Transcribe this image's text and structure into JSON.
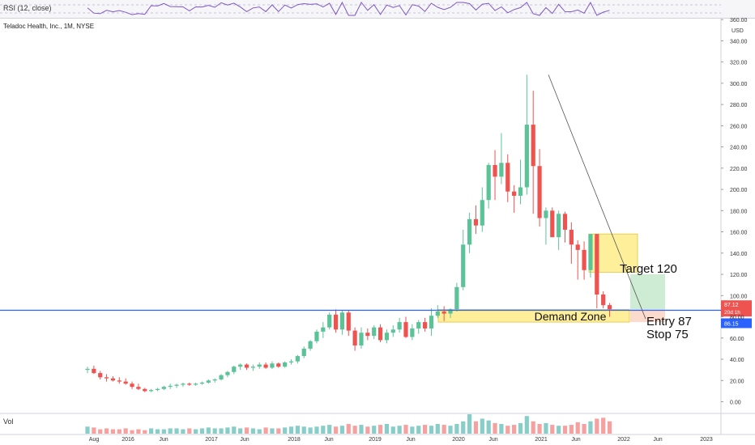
{
  "rsi": {
    "label": "RSI (12, close)"
  },
  "header": {
    "title": "Teladoc Health, Inc., 1M, NYSE",
    "currency": "USD"
  },
  "volume": {
    "label": "Vol"
  },
  "colors": {
    "up": "#26a69a",
    "upFill": "#5cc398",
    "down": "#ef5350",
    "price_line": "#2962ff",
    "demand_zone": "#fde97a",
    "target_zone": "#c9e9cf",
    "stop_zone": "#f9d7c8",
    "rsi_line": "#7e57c2"
  },
  "annotations": {
    "demand_zone": "Demand Zone",
    "target": "Target 120",
    "entry": "Entry  87",
    "stop": "Stop   75"
  },
  "price_badges": {
    "last": "87.12",
    "countdown": "20d 1h",
    "line": "86.15"
  },
  "chart_data": {
    "type": "candlestick",
    "symbol": "Teladoc Health, Inc., 1M, NYSE",
    "y_axis": {
      "min": 0,
      "max": 360,
      "ticks": [
        0,
        20,
        40,
        60,
        80,
        100,
        120,
        140,
        160,
        180,
        200,
        220,
        240,
        260,
        280,
        300,
        320,
        340,
        360
      ],
      "unit": "USD"
    },
    "x_ticks": [
      "Aug",
      "2016",
      "Jun",
      "2017",
      "Jun",
      "2018",
      "Jun",
      "2019",
      "Jun",
      "2020",
      "Jun",
      "2021",
      "Jun",
      "2022",
      "Jun",
      "2023"
    ],
    "start_month": "2015-07",
    "candles": [
      [
        30,
        33,
        27,
        31
      ],
      [
        31,
        34,
        26,
        27
      ],
      [
        27,
        29,
        21,
        23
      ],
      [
        23,
        26,
        19,
        22
      ],
      [
        22,
        24,
        19,
        20
      ],
      [
        20,
        23,
        17,
        19
      ],
      [
        19,
        22,
        16,
        17
      ],
      [
        17,
        19,
        12,
        14
      ],
      [
        14,
        17,
        11,
        12
      ],
      [
        12,
        13,
        9,
        10
      ],
      [
        10,
        12,
        9,
        11
      ],
      [
        11,
        13,
        10,
        12
      ],
      [
        12,
        15,
        11,
        14
      ],
      [
        14,
        17,
        12,
        15
      ],
      [
        15,
        17,
        13,
        16
      ],
      [
        16,
        18,
        14,
        17
      ],
      [
        17,
        18,
        15,
        16
      ],
      [
        16,
        18,
        15,
        17
      ],
      [
        17,
        19,
        16,
        18
      ],
      [
        18,
        21,
        17,
        20
      ],
      [
        20,
        22,
        18,
        21
      ],
      [
        21,
        26,
        20,
        25
      ],
      [
        25,
        29,
        23,
        28
      ],
      [
        28,
        34,
        26,
        33
      ],
      [
        33,
        36,
        30,
        35
      ],
      [
        35,
        36,
        30,
        32
      ],
      [
        32,
        35,
        29,
        33
      ],
      [
        33,
        37,
        31,
        35
      ],
      [
        35,
        37,
        31,
        32
      ],
      [
        32,
        38,
        31,
        36
      ],
      [
        36,
        37,
        32,
        33
      ],
      [
        33,
        38,
        32,
        37
      ],
      [
        37,
        40,
        35,
        38
      ],
      [
        38,
        44,
        36,
        43
      ],
      [
        43,
        52,
        41,
        50
      ],
      [
        50,
        58,
        48,
        57
      ],
      [
        57,
        68,
        55,
        66
      ],
      [
        66,
        75,
        60,
        70
      ],
      [
        70,
        84,
        68,
        82
      ],
      [
        82,
        87,
        65,
        68
      ],
      [
        68,
        86,
        63,
        84
      ],
      [
        84,
        86,
        62,
        67
      ],
      [
        67,
        70,
        48,
        53
      ],
      [
        53,
        70,
        50,
        65
      ],
      [
        65,
        69,
        58,
        62
      ],
      [
        62,
        72,
        59,
        70
      ],
      [
        70,
        73,
        56,
        58
      ],
      [
        58,
        68,
        55,
        65
      ],
      [
        65,
        72,
        61,
        68
      ],
      [
        68,
        79,
        65,
        75
      ],
      [
        75,
        80,
        60,
        61
      ],
      [
        61,
        73,
        58,
        69
      ],
      [
        69,
        77,
        64,
        75
      ],
      [
        75,
        79,
        66,
        69
      ],
      [
        69,
        88,
        62,
        81
      ],
      [
        81,
        91,
        79,
        85
      ],
      [
        85,
        90,
        76,
        83
      ],
      [
        83,
        88,
        79,
        87
      ],
      [
        87,
        112,
        85,
        108
      ],
      [
        108,
        162,
        105,
        148
      ],
      [
        148,
        178,
        140,
        172
      ],
      [
        172,
        185,
        158,
        166
      ],
      [
        166,
        202,
        160,
        190
      ],
      [
        190,
        225,
        182,
        223
      ],
      [
        223,
        237,
        190,
        212
      ],
      [
        212,
        253,
        205,
        225
      ],
      [
        225,
        233,
        188,
        198
      ],
      [
        198,
        204,
        178,
        194
      ],
      [
        194,
        228,
        186,
        202
      ],
      [
        202,
        308,
        195,
        261
      ],
      [
        261,
        293,
        177,
        222
      ],
      [
        222,
        238,
        165,
        173
      ],
      [
        173,
        183,
        148,
        180
      ],
      [
        180,
        183,
        155,
        155
      ],
      [
        155,
        180,
        143,
        177
      ],
      [
        177,
        179,
        150,
        162
      ],
      [
        162,
        169,
        130,
        148
      ],
      [
        148,
        152,
        115,
        143
      ],
      [
        143,
        151,
        115,
        124
      ],
      [
        124,
        158,
        117,
        158
      ],
      [
        158,
        158,
        88,
        101
      ],
      [
        101,
        104,
        88,
        91
      ],
      [
        91,
        93,
        80,
        87
      ]
    ],
    "volume": [
      8,
      7,
      5,
      6,
      5,
      5,
      6,
      4,
      5,
      4,
      6,
      5,
      5,
      6,
      6,
      5,
      6,
      5,
      6,
      7,
      6,
      6,
      7,
      8,
      6,
      7,
      6,
      5,
      7,
      6,
      6,
      7,
      8,
      9,
      8,
      7,
      8,
      9,
      10,
      8,
      9,
      11,
      9,
      10,
      8,
      9,
      10,
      11,
      8,
      9,
      10,
      8,
      9,
      10,
      9,
      11,
      10,
      9,
      11,
      14,
      22,
      14,
      17,
      15,
      12,
      11,
      9,
      10,
      12,
      20,
      14,
      11,
      12,
      10,
      9,
      9,
      10,
      13,
      11,
      14,
      17,
      18,
      14
    ],
    "price_line": 86.15,
    "last_price": 87.12,
    "demand_zone": {
      "low": 75,
      "high": 87
    },
    "target": 120,
    "entry": 87,
    "stop": 75
  }
}
